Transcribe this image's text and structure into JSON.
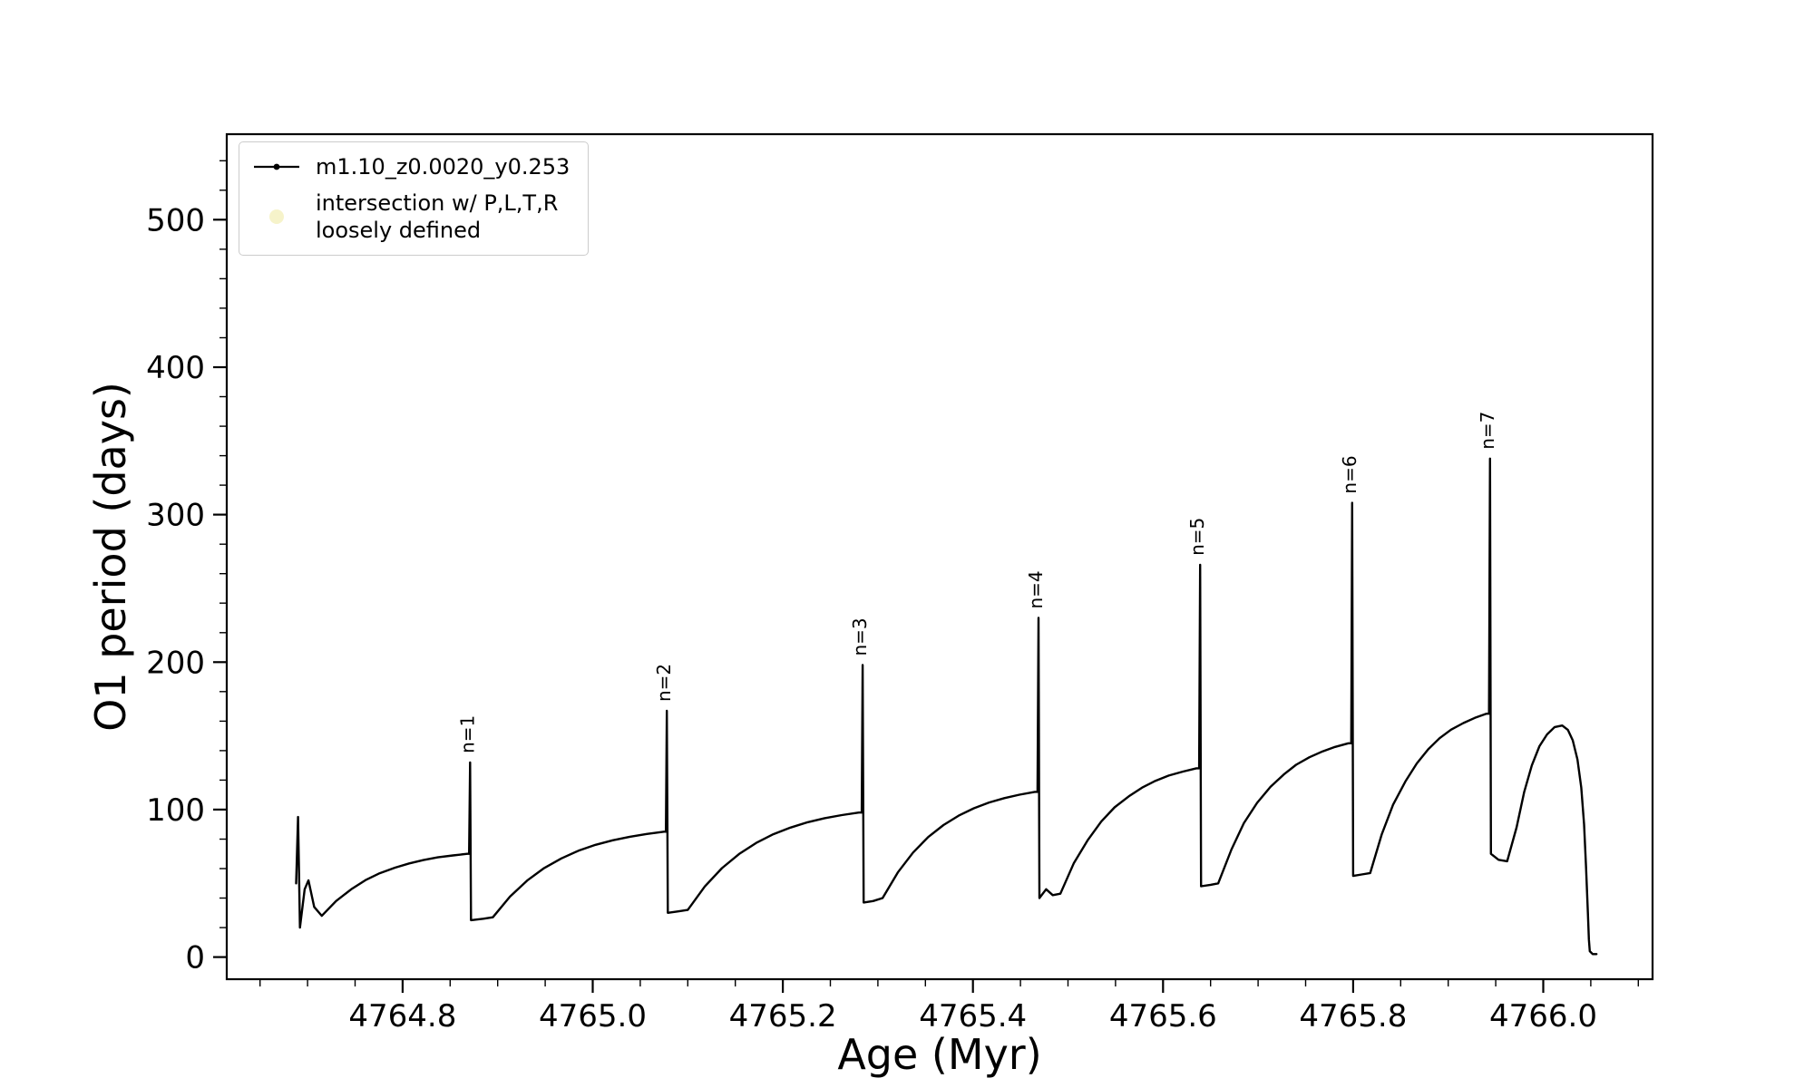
{
  "figure": {
    "background": "#ffffff"
  },
  "chart_data": {
    "type": "line",
    "title": "",
    "xlabel": "Age (Myr)",
    "ylabel": "O1 period (days)",
    "xlim": [
      4764.615,
      4766.115
    ],
    "ylim": [
      -15,
      558
    ],
    "grid": false,
    "line_color": "#000000",
    "xticks": {
      "values": [
        4764.8,
        4765.0,
        4765.2,
        4765.4,
        4765.6,
        4765.8,
        4766.0
      ],
      "labels": [
        "4764.8",
        "4765.0",
        "4765.2",
        "4765.4",
        "4765.6",
        "4765.8",
        "4766.0"
      ],
      "minor_start": 4764.65,
      "minor_step": 0.05,
      "minor_count": 30
    },
    "yticks": {
      "values": [
        0,
        100,
        200,
        300,
        400,
        500
      ],
      "labels": [
        "0",
        "100",
        "200",
        "300",
        "400",
        "500"
      ],
      "minor_start": 20,
      "minor_step": 20,
      "minor_max": 540
    },
    "legend": {
      "position": "top-left",
      "entries": [
        {
          "label": "m1.10_z0.0020_y0.253",
          "marker": "line-dot",
          "color": "#000000"
        },
        {
          "label": "intersection w/ P,L,T,R loosely defined",
          "label_lines": [
            "intersection w/ P,L,T,R",
            "loosely defined"
          ],
          "marker": "circle",
          "color": "#f0eba6"
        }
      ]
    },
    "annotations": [
      {
        "label": "n=1",
        "x": 4764.871,
        "y": 132
      },
      {
        "label": "n=2",
        "x": 4765.078,
        "y": 167
      },
      {
        "label": "n=3",
        "x": 4765.284,
        "y": 198
      },
      {
        "label": "n=4",
        "x": 4765.469,
        "y": 230
      },
      {
        "label": "n=5",
        "x": 4765.639,
        "y": 266
      },
      {
        "label": "n=6",
        "x": 4765.799,
        "y": 308
      },
      {
        "label": "n=7",
        "x": 4765.944,
        "y": 338
      }
    ],
    "series": [
      {
        "name": "m1.10_z0.0020_y0.253",
        "points": [
          [
            4764.688,
            50
          ],
          [
            4764.69,
            95
          ],
          [
            4764.691,
            60
          ],
          [
            4764.692,
            20
          ],
          [
            4764.697,
            46
          ],
          [
            4764.701,
            52
          ],
          [
            4764.707,
            34
          ],
          [
            4764.715,
            28
          ],
          [
            4764.73,
            38
          ],
          [
            4764.746,
            46
          ],
          [
            4764.761,
            52.2
          ],
          [
            4764.776,
            56.9
          ],
          [
            4764.792,
            60.6
          ],
          [
            4764.807,
            63.5
          ],
          [
            4764.822,
            65.8
          ],
          [
            4764.837,
            67.6
          ],
          [
            4764.853,
            68.9
          ],
          [
            4764.868,
            70
          ],
          [
            4764.87,
            70
          ],
          [
            4764.871,
            132
          ],
          [
            4764.872,
            25
          ],
          [
            4764.885,
            26
          ],
          [
            4764.895,
            27
          ],
          [
            4764.913,
            41
          ],
          [
            4764.931,
            51.9
          ],
          [
            4764.949,
            60.4
          ],
          [
            4764.967,
            66.9
          ],
          [
            4764.985,
            72.1
          ],
          [
            4765.003,
            76.1
          ],
          [
            4765.021,
            79.2
          ],
          [
            4765.039,
            81.6
          ],
          [
            4765.057,
            83.5
          ],
          [
            4765.075,
            85
          ],
          [
            4765.077,
            85
          ],
          [
            4765.078,
            167
          ],
          [
            4765.079,
            30
          ],
          [
            4765.09,
            31
          ],
          [
            4765.1,
            32
          ],
          [
            4765.118,
            47.9
          ],
          [
            4765.136,
            60.3
          ],
          [
            4765.154,
            69.9
          ],
          [
            4765.172,
            77.4
          ],
          [
            4765.19,
            83.3
          ],
          [
            4765.208,
            87.8
          ],
          [
            4765.226,
            91.4
          ],
          [
            4765.244,
            94.2
          ],
          [
            4765.262,
            96.3
          ],
          [
            4765.28,
            98
          ],
          [
            4765.283,
            98
          ],
          [
            4765.284,
            198
          ],
          [
            4765.285,
            37
          ],
          [
            4765.295,
            38
          ],
          [
            4765.305,
            40
          ],
          [
            4765.321,
            57.4
          ],
          [
            4765.337,
            70.9
          ],
          [
            4765.353,
            81.4
          ],
          [
            4765.369,
            89.5
          ],
          [
            4765.385,
            95.9
          ],
          [
            4765.401,
            100.9
          ],
          [
            4765.417,
            104.8
          ],
          [
            4765.433,
            107.8
          ],
          [
            4765.449,
            110.1
          ],
          [
            4765.465,
            112
          ],
          [
            4765.468,
            112
          ],
          [
            4765.469,
            230
          ],
          [
            4765.47,
            40
          ],
          [
            4765.477,
            46
          ],
          [
            4765.484,
            42
          ],
          [
            4765.492,
            43
          ],
          [
            4765.506,
            63.5
          ],
          [
            4765.521,
            79.5
          ],
          [
            4765.535,
            91.9
          ],
          [
            4765.549,
            101.5
          ],
          [
            4765.564,
            109
          ],
          [
            4765.578,
            114.9
          ],
          [
            4765.592,
            119.5
          ],
          [
            4765.606,
            123.1
          ],
          [
            4765.621,
            125.8
          ],
          [
            4765.635,
            128
          ],
          [
            4765.638,
            128
          ],
          [
            4765.639,
            266
          ],
          [
            4765.64,
            48
          ],
          [
            4765.65,
            49
          ],
          [
            4765.658,
            50
          ],
          [
            4765.672,
            72.9
          ],
          [
            4765.685,
            90.8
          ],
          [
            4765.699,
            104.6
          ],
          [
            4765.713,
            115.4
          ],
          [
            4765.727,
            123.8
          ],
          [
            4765.74,
            130.4
          ],
          [
            4765.754,
            135.5
          ],
          [
            4765.768,
            139.5
          ],
          [
            4765.781,
            142.5
          ],
          [
            4765.795,
            145
          ],
          [
            4765.798,
            145
          ],
          [
            4765.799,
            308
          ],
          [
            4765.8,
            55
          ],
          [
            4765.809,
            56
          ],
          [
            4765.818,
            57
          ],
          [
            4765.83,
            83
          ],
          [
            4765.842,
            103.3
          ],
          [
            4765.855,
            119.1
          ],
          [
            4765.867,
            131.3
          ],
          [
            4765.879,
            140.9
          ],
          [
            4765.891,
            148.4
          ],
          [
            4765.903,
            154.2
          ],
          [
            4765.916,
            158.7
          ],
          [
            4765.928,
            162.2
          ],
          [
            4765.94,
            165
          ],
          [
            4765.943,
            165
          ],
          [
            4765.944,
            338
          ],
          [
            4765.945,
            70
          ],
          [
            4765.953,
            66
          ],
          [
            4765.962,
            65
          ],
          [
            4765.972,
            88
          ],
          [
            4765.98,
            112
          ],
          [
            4765.988,
            130
          ],
          [
            4765.996,
            143
          ],
          [
            4766.004,
            151
          ],
          [
            4766.012,
            156
          ],
          [
            4766.02,
            157
          ],
          [
            4766.026,
            154
          ],
          [
            4766.031,
            147
          ],
          [
            4766.036,
            134
          ],
          [
            4766.04,
            115
          ],
          [
            4766.043,
            90
          ],
          [
            4766.045,
            62
          ],
          [
            4766.047,
            30
          ],
          [
            4766.048,
            12
          ],
          [
            4766.049,
            4
          ],
          [
            4766.052,
            2
          ],
          [
            4766.056,
            2
          ]
        ]
      }
    ]
  }
}
